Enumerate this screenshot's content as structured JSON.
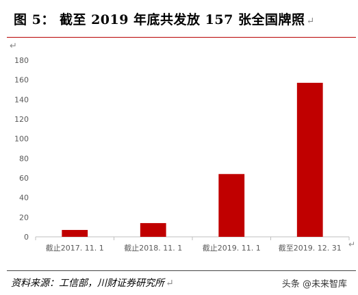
{
  "header": {
    "title": "图 5： 截至 2019 年底共发放 157 张全国牌照",
    "return_mark": "↵"
  },
  "colors": {
    "bar": "#c00000",
    "rule": "#b80000",
    "axis": "#bfbfbf",
    "label": "#595959"
  },
  "chart_data": {
    "type": "bar",
    "title": "",
    "xlabel": "",
    "ylabel": "",
    "categories": [
      "截止2017. 11. 1",
      "截止2018. 11. 1",
      "截止2019. 11. 1",
      "截至2019. 12. 31"
    ],
    "values": [
      7,
      14,
      64,
      157
    ],
    "ylim": [
      0,
      180
    ],
    "yticks": [
      0,
      20,
      40,
      60,
      80,
      100,
      120,
      140,
      160,
      180
    ],
    "grid": false,
    "legend": "none"
  },
  "footer": {
    "source": "资料来源：工信部，川财证券研究所",
    "return_mark": "↵",
    "watermark": "头条 @未来智库"
  },
  "marks": {
    "top_para": "↵",
    "side": "↵"
  }
}
